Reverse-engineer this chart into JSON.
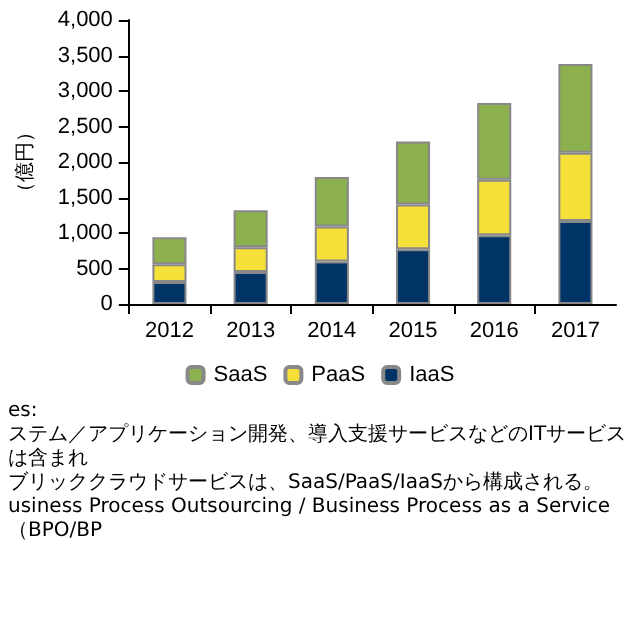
{
  "chart_data": {
    "type": "bar",
    "stacked": true,
    "ylabel": "（億円）",
    "categories": [
      "2012",
      "2013",
      "2014",
      "2015",
      "2016",
      "2017"
    ],
    "series": [
      {
        "name": "IaaS",
        "color": "#003366",
        "values": [
          310,
          450,
          600,
          770,
          970,
          1170
        ]
      },
      {
        "name": "PaaS",
        "color": "#f5e03a",
        "values": [
          250,
          350,
          490,
          630,
          780,
          960
        ]
      },
      {
        "name": "SaaS",
        "color": "#8db04f",
        "values": [
          380,
          520,
          700,
          890,
          1080,
          1250
        ]
      }
    ],
    "ylim": [
      0,
      4000
    ],
    "yticks": [
      {
        "value": 0,
        "label": "0"
      },
      {
        "value": 500,
        "label": "500"
      },
      {
        "value": 1000,
        "label": "1,000"
      },
      {
        "value": 1500,
        "label": "1,500"
      },
      {
        "value": 2000,
        "label": "2,000"
      },
      {
        "value": 2500,
        "label": "2,500"
      },
      {
        "value": 3000,
        "label": "3,000"
      },
      {
        "value": 3500,
        "label": "3,500"
      },
      {
        "value": 4000,
        "label": "4,000"
      }
    ],
    "grid": false,
    "legend": "bottom",
    "annotations": [
      "es:",
      "ステム／アプリケーション開発、導入支援サービスなどのITサービスは含まれ",
      "ブリッククラウドサービスは、SaaS/PaaS/IaaSから構成される。",
      "usiness Process Outsourcing / Business Process as a Service（BPO/BP"
    ]
  }
}
